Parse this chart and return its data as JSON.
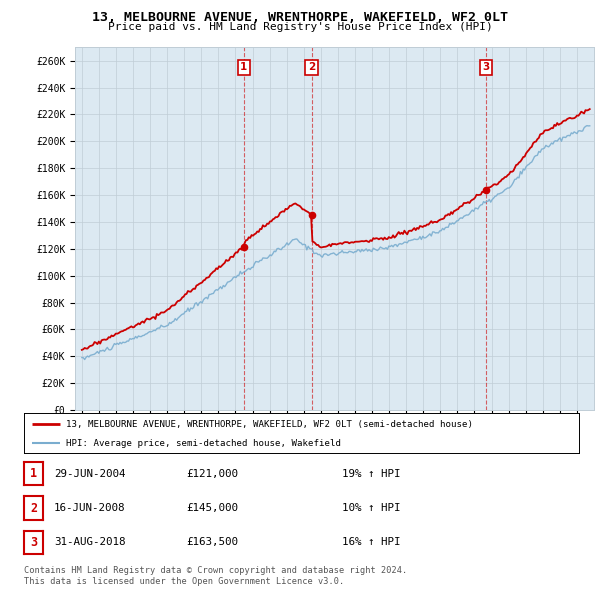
{
  "title": "13, MELBOURNE AVENUE, WRENTHORPE, WAKEFIELD, WF2 0LT",
  "subtitle": "Price paid vs. HM Land Registry's House Price Index (HPI)",
  "ylim": [
    0,
    270000
  ],
  "yticks": [
    0,
    20000,
    40000,
    60000,
    80000,
    100000,
    120000,
    140000,
    160000,
    180000,
    200000,
    220000,
    240000,
    260000
  ],
  "ytick_labels": [
    "£0",
    "£20K",
    "£40K",
    "£60K",
    "£80K",
    "£100K",
    "£120K",
    "£140K",
    "£160K",
    "£180K",
    "£200K",
    "£220K",
    "£240K",
    "£260K"
  ],
  "sale_dates": [
    2004.49,
    2008.46,
    2018.66
  ],
  "sale_prices": [
    121000,
    145000,
    163500
  ],
  "sale_labels": [
    "1",
    "2",
    "3"
  ],
  "legend_line1": "13, MELBOURNE AVENUE, WRENTHORPE, WAKEFIELD, WF2 0LT (semi-detached house)",
  "legend_line2": "HPI: Average price, semi-detached house, Wakefield",
  "table_entries": [
    {
      "num": "1",
      "date": "29-JUN-2004",
      "price": "£121,000",
      "change": "19% ↑ HPI"
    },
    {
      "num": "2",
      "date": "16-JUN-2008",
      "price": "£145,000",
      "change": "10% ↑ HPI"
    },
    {
      "num": "3",
      "date": "31-AUG-2018",
      "price": "£163,500",
      "change": "16% ↑ HPI"
    }
  ],
  "footer": "Contains HM Land Registry data © Crown copyright and database right 2024.\nThis data is licensed under the Open Government Licence v3.0.",
  "price_color": "#cc0000",
  "hpi_color": "#7aadcf",
  "background_color": "#dce9f2",
  "grid_color": "#c0cdd6"
}
